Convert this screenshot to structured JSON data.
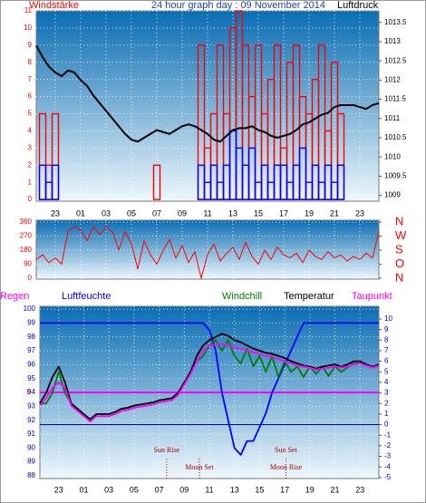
{
  "chart_data": [
    {
      "type": "bar",
      "title": "24 hour graph day : 09 November 2014",
      "ylabel": "Windstärke",
      "y2label": "Luftdruck",
      "x": [
        -2.5,
        -2,
        -1.5,
        -1,
        -0.5,
        0,
        0.5,
        1,
        1.5,
        2,
        2.5,
        3,
        3.5,
        4,
        4.5,
        5,
        5.5,
        6,
        6.5,
        7,
        7.5,
        8,
        8.5,
        9,
        9.5,
        10,
        10.5,
        11,
        11.5,
        12,
        12.5,
        13,
        13.5,
        14,
        14.5,
        15,
        15.5,
        16,
        16.5,
        17,
        17.5,
        18,
        18.5,
        19,
        19.5,
        20,
        20.5,
        21,
        21.5,
        22,
        22.5,
        23,
        23.5,
        24,
        24.5
      ],
      "xlim": [
        -2.5,
        24.5
      ],
      "xticks": [
        {
          "value": -1,
          "label": "23"
        },
        {
          "value": 1,
          "label": "01"
        },
        {
          "value": 3,
          "label": "03"
        },
        {
          "value": 5,
          "label": "05"
        },
        {
          "value": 7,
          "label": "07"
        },
        {
          "value": 9,
          "label": "09"
        },
        11,
        13,
        15,
        17,
        19,
        21,
        23
      ],
      "ylim": [
        -0.1,
        11
      ],
      "yticks": [
        0,
        1,
        2,
        3,
        4,
        5,
        6,
        7,
        8,
        9,
        10,
        11
      ],
      "y2lim": [
        1008.85,
        1013.8
      ],
      "y2ticks": [
        1009,
        1009.5,
        1010,
        1010.5,
        1011,
        1011.5,
        1012,
        1012.5,
        1013,
        1013.5
      ],
      "grid": true,
      "series": [
        {
          "color": "#ff0000",
          "values": [
            0,
            5,
            2,
            5,
            0,
            0,
            0,
            0,
            0,
            0,
            0,
            0,
            0,
            0,
            0,
            0,
            0,
            0,
            0,
            2,
            0,
            0,
            0,
            0,
            0,
            0,
            9,
            3,
            5,
            9,
            5,
            10,
            11,
            9,
            6,
            9,
            5,
            7,
            9,
            3,
            8,
            9,
            6,
            5,
            7,
            9,
            4,
            8,
            5,
            0,
            0,
            0,
            0,
            0,
            0
          ]
        },
        {
          "color": "#0000ff",
          "values": [
            0,
            2,
            1,
            2,
            0,
            0,
            0,
            0,
            0,
            0,
            0,
            0,
            0,
            0,
            0,
            0,
            0,
            0,
            0,
            0,
            0,
            0,
            0,
            0,
            0,
            0,
            2,
            1,
            2,
            1,
            2,
            4,
            3,
            2,
            3,
            1,
            2,
            1,
            2,
            2,
            1,
            2,
            3,
            1,
            2,
            1,
            2,
            1,
            2,
            0,
            0,
            0,
            0,
            0,
            0
          ]
        },
        {
          "color": "#000000",
          "axis": "y2",
          "values": [
            1012.9,
            1012.6,
            1012.35,
            1012.2,
            1012.1,
            1012.25,
            1012.2,
            1012.0,
            1011.85,
            1011.6,
            1011.4,
            1011.2,
            1011.0,
            1010.8,
            1010.6,
            1010.45,
            1010.4,
            1010.5,
            1010.6,
            1010.7,
            1010.65,
            1010.6,
            1010.7,
            1010.8,
            1010.85,
            1010.8,
            1010.7,
            1010.6,
            1010.45,
            1010.4,
            1010.55,
            1010.7,
            1010.75,
            1010.75,
            1010.8,
            1010.7,
            1010.65,
            1010.55,
            1010.5,
            1010.55,
            1010.6,
            1010.7,
            1010.85,
            1010.9,
            1011.0,
            1011.1,
            1011.15,
            1011.3,
            1011.35,
            1011.35,
            1011.35,
            1011.3,
            1011.25,
            1011.35,
            1011.4
          ]
        }
      ]
    },
    {
      "type": "line",
      "x": [
        -2.5,
        -2,
        -1.5,
        -1,
        -0.5,
        0,
        0.5,
        1,
        1.5,
        2,
        2.5,
        3,
        3.5,
        4,
        4.5,
        5,
        5.5,
        6,
        6.5,
        7,
        7.5,
        8,
        8.5,
        9,
        9.5,
        10,
        10.5,
        11,
        11.5,
        12,
        12.5,
        13,
        13.5,
        14,
        14.5,
        15,
        15.5,
        16,
        16.5,
        17,
        17.5,
        18,
        18.5,
        19,
        19.5,
        20,
        20.5,
        21,
        21.5,
        22,
        22.5,
        23,
        23.5,
        24,
        24.5
      ],
      "xlim": [
        -2.5,
        24.5
      ],
      "xticks": [
        -1,
        1,
        3,
        5,
        7,
        9,
        11,
        13,
        15,
        17,
        19,
        21,
        23
      ],
      "ylim": [
        -6,
        372
      ],
      "yticks": [
        0,
        90,
        180,
        270,
        360
      ],
      "y2ticks": [
        {
          "value": 360,
          "label": "N"
        },
        {
          "value": 270,
          "label": "W"
        },
        {
          "value": 180,
          "label": "S"
        },
        {
          "value": 90,
          "label": "O"
        },
        {
          "value": 0,
          "label": "N"
        }
      ],
      "grid": true,
      "series": [
        {
          "color": "#ff0000",
          "values": [
            120,
            150,
            100,
            130,
            90,
            300,
            330,
            310,
            240,
            330,
            280,
            330,
            300,
            180,
            300,
            220,
            60,
            240,
            150,
            90,
            180,
            250,
            130,
            210,
            100,
            170,
            0,
            150,
            220,
            110,
            160,
            200,
            120,
            230,
            140,
            90,
            180,
            120,
            200,
            150,
            130,
            160,
            100,
            180,
            140,
            120,
            170,
            130,
            150,
            110,
            140,
            120,
            160,
            130,
            300
          ]
        }
      ]
    },
    {
      "type": "line",
      "x": [
        -2.5,
        -2,
        -1.5,
        -1,
        -0.5,
        0,
        0.5,
        1,
        1.5,
        2,
        2.5,
        3,
        3.5,
        4,
        4.5,
        5,
        5.5,
        6,
        6.5,
        7,
        7.5,
        8,
        8.5,
        9,
        9.5,
        10,
        10.5,
        11,
        11.5,
        12,
        12.5,
        13,
        13.5,
        14,
        14.5,
        15,
        15.5,
        16,
        16.5,
        17,
        17.5,
        18,
        18.5,
        19,
        19.5,
        20,
        20.5,
        21,
        21.5,
        22,
        22.5,
        23,
        23.5,
        24,
        24.5
      ],
      "xlim": [
        -2.5,
        24.5
      ],
      "xticks": [
        {
          "value": -1,
          "label": "23"
        },
        {
          "value": 1,
          "label": "01"
        },
        {
          "value": 3,
          "label": "03"
        },
        {
          "value": 5,
          "label": "05"
        },
        {
          "value": 7,
          "label": "07"
        },
        {
          "value": 9,
          "label": "09"
        },
        11,
        13,
        15,
        17,
        19,
        21,
        23
      ],
      "ylim": [
        87.8,
        100.2
      ],
      "yticks": [
        88,
        89,
        90,
        91,
        92,
        93,
        94,
        95,
        96,
        97,
        98,
        99,
        100
      ],
      "y2lim": [
        -5.1,
        11.2
      ],
      "y2ticks": [
        -5,
        -4,
        -3,
        -2,
        -1,
        0,
        1,
        2,
        3,
        4,
        5,
        6,
        7,
        8,
        9,
        10
      ],
      "y3lim": [
        -1,
        1
      ],
      "y3ticks": [
        0
      ],
      "y2_zero_line": true,
      "grid": true,
      "series": [
        {
          "name": "Regen",
          "color": "#ff00ff",
          "axis": "y3",
          "values": [
            0,
            0,
            0,
            0,
            0,
            0,
            0,
            0,
            0,
            0,
            0,
            0,
            0,
            0,
            0,
            0,
            0,
            0,
            0,
            0,
            0,
            0,
            0,
            0,
            0,
            0,
            0,
            0,
            0,
            0,
            0,
            0,
            0,
            0,
            0,
            0,
            0,
            0,
            0,
            0,
            0,
            0,
            0,
            0,
            0,
            0,
            0,
            0,
            0,
            0,
            0,
            0,
            0,
            0,
            0
          ]
        },
        {
          "name": "Luftfeuchte",
          "color": "#0000ff",
          "values": [
            99,
            99,
            99,
            99,
            99,
            99,
            99,
            99,
            99,
            99,
            99,
            99,
            99,
            99,
            99,
            99,
            99,
            99,
            99,
            99,
            99,
            99,
            99,
            99,
            99,
            99,
            99,
            98.5,
            97,
            94,
            92,
            90,
            89.5,
            90.5,
            90.5,
            91.5,
            92.5,
            94,
            95,
            96,
            97,
            98,
            99,
            99,
            99,
            99,
            99,
            99,
            99,
            99,
            99,
            99,
            99,
            99,
            99
          ]
        },
        {
          "name": "Windchill",
          "color": "#008000",
          "axis": "y2",
          "values": [
            2,
            2,
            3,
            5,
            3,
            2,
            1.5,
            1,
            0.5,
            1,
            1,
            1,
            1.2,
            1.5,
            1.6,
            1.8,
            1.9,
            2,
            2.1,
            2.3,
            2.4,
            2.5,
            3,
            4,
            5,
            6,
            6.5,
            7.5,
            8,
            7,
            8,
            6.5,
            5.8,
            7.2,
            5.5,
            6.5,
            5,
            6.5,
            4.5,
            6,
            5,
            5.5,
            4.5,
            5.5,
            4.8,
            5.5,
            4.6,
            5.5,
            5,
            5.4,
            5.8,
            5.8,
            5.6,
            5.4,
            5.6
          ]
        },
        {
          "name": "Temperatur",
          "color": "#000000",
          "axis": "y2",
          "values": [
            2,
            3,
            4.5,
            5.5,
            4,
            2,
            1.5,
            1,
            0.5,
            1,
            1,
            1,
            1.2,
            1.5,
            1.6,
            1.8,
            1.9,
            2,
            2.1,
            2.3,
            2.4,
            2.5,
            3,
            4,
            5,
            6.5,
            7.5,
            8,
            8.3,
            8.6,
            8.4,
            8,
            7.8,
            7.5,
            7.2,
            7,
            6.8,
            6.7,
            6.5,
            6.3,
            6,
            5.8,
            5.6,
            5.5,
            5.3,
            5.5,
            5.6,
            5.7,
            5.5,
            5.7,
            6,
            6,
            5.7,
            5.5,
            5.7
          ]
        },
        {
          "name": "Taupunkt",
          "color": "#ff00ff",
          "axis": "y2",
          "values": [
            1.8,
            2.5,
            3.5,
            4,
            3.5,
            1.8,
            1.3,
            0.8,
            0.3,
            0.8,
            0.8,
            0.8,
            1,
            1.3,
            1.4,
            1.6,
            1.7,
            1.8,
            1.9,
            2.1,
            2.2,
            2.3,
            2.8,
            3.8,
            4.8,
            6,
            7,
            7.5,
            7.6,
            7.6,
            7.5,
            7.3,
            7.2,
            7,
            6.9,
            6.7,
            6.5,
            6.4,
            6.2,
            6,
            5.8,
            5.6,
            5.5,
            5.4,
            5.2,
            5.3,
            5.4,
            5.5,
            5.4,
            5.5,
            5.7,
            5.8,
            5.6,
            5.4,
            5.6
          ]
        }
      ],
      "annotations": [
        {
          "text": "Sun Rise",
          "x": 7.6
        },
        {
          "text": "Moon Set",
          "x": 10.2
        },
        {
          "text": "Sun Set",
          "x": 17.1
        },
        {
          "text": "Moon Rise",
          "x": 17.1
        }
      ]
    }
  ]
}
